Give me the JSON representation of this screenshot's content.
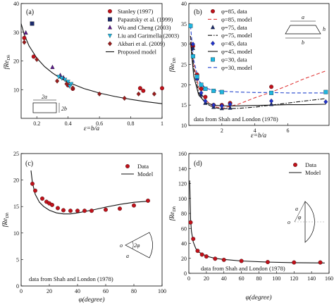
{
  "colors": {
    "red": "#c0111a",
    "navy": "#1b2a6b",
    "purple": "#5b1a8a",
    "cyan": "#1fb6e0",
    "darkred": "#9b1c1c",
    "blue": "#2233cc",
    "black": "#111111",
    "dashred": "#e03a3a",
    "dashblue": "#2244cc"
  },
  "chart_data": [
    {
      "panel": "(a)",
      "type": "scatter",
      "xlabel": "ε=b/a",
      "ylabel": "fRe_Dh",
      "xlim": [
        0.1,
        1.0
      ],
      "ylim": [
        0,
        40
      ],
      "xticks": [
        0.2,
        0.4,
        0.6,
        0.8,
        1
      ],
      "yticks": [
        10,
        20,
        30,
        40
      ],
      "legend_position": "top-right",
      "inset_labels": {
        "a": "2a",
        "b": "2b"
      },
      "series": [
        {
          "name": "Stanley (1997)",
          "marker": "circle",
          "color": "red",
          "points": [
            [
              0.12,
              28.0
            ],
            [
              0.18,
              21.5
            ],
            [
              0.4,
              11.5
            ],
            [
              0.43,
              10.3
            ],
            [
              0.86,
              10.5
            ],
            [
              0.88,
              9.6
            ],
            [
              1.0,
              10.5
            ]
          ]
        },
        {
          "name": "Papautsky et al. (1999)",
          "marker": "square",
          "color": "navy",
          "points": [
            [
              0.17,
              33.0
            ]
          ]
        },
        {
          "name": "Wu and Cheng (2003)",
          "marker": "triangle-up",
          "color": "purple",
          "points": [
            [
              0.13,
              29.8
            ],
            [
              0.3,
              17.8
            ],
            [
              0.35,
              15.0
            ],
            [
              0.37,
              14.2
            ]
          ]
        },
        {
          "name": "Liu and Garimella (2003)",
          "marker": "triangle-down",
          "color": "cyan",
          "points": [
            [
              0.34,
              14.5
            ],
            [
              0.36,
              14.0
            ],
            [
              0.38,
              13.5
            ],
            [
              0.4,
              12.8
            ],
            [
              0.42,
              12.0
            ],
            [
              0.41,
              11.2
            ]
          ]
        },
        {
          "name": "Akbari et al. (2009)",
          "marker": "diamond",
          "color": "darkred",
          "points": [
            [
              0.12,
              26.5
            ],
            [
              0.2,
              20.5
            ],
            [
              0.33,
              13.0
            ],
            [
              0.39,
              12.0
            ],
            [
              0.43,
              10.6
            ],
            [
              0.6,
              8.5
            ],
            [
              0.76,
              7.0
            ],
            [
              0.85,
              8.5
            ],
            [
              0.95,
              8.5
            ]
          ]
        },
        {
          "name": "Proposed model",
          "line": "solid",
          "color": "black",
          "points": [
            [
              0.1,
              33.0
            ],
            [
              0.12,
              29.2
            ],
            [
              0.15,
              25.3
            ],
            [
              0.2,
              21.0
            ],
            [
              0.25,
              18.0
            ],
            [
              0.3,
              15.8
            ],
            [
              0.35,
              14.0
            ],
            [
              0.4,
              12.6
            ],
            [
              0.5,
              10.4
            ],
            [
              0.6,
              8.8
            ],
            [
              0.7,
              7.6
            ],
            [
              0.8,
              6.6
            ],
            [
              0.9,
              5.8
            ],
            [
              1.0,
              5.1
            ]
          ]
        }
      ]
    },
    {
      "panel": "(b)",
      "type": "line",
      "xlabel": "ε=b/a",
      "ylabel": "fRe_Dh",
      "xlim": [
        0,
        8.5
      ],
      "ylim": [
        10,
        40
      ],
      "xticks": [
        2,
        4,
        6
      ],
      "yticks": [
        10,
        15,
        20,
        25,
        30,
        35,
        40
      ],
      "legend_position": "top-center",
      "annotation": "data from Shah and London (1978)",
      "inset_labels": {
        "a": "a",
        "b": "b",
        "h": "h"
      },
      "series": [
        {
          "name": "φ=85, data",
          "marker": "circle",
          "color": "red",
          "points": [
            [
              0.25,
              29.5
            ],
            [
              0.5,
              22.5
            ],
            [
              0.75,
              19.0
            ],
            [
              1.0,
              17.0
            ],
            [
              1.5,
              15.0
            ],
            [
              2.0,
              15.0
            ],
            [
              2.5,
              15.5
            ],
            [
              5.0,
              19.5
            ]
          ]
        },
        {
          "name": "φ=85, model",
          "line": "dashed",
          "color": "dashred",
          "points": [
            [
              0.1,
              32.0
            ],
            [
              0.3,
              25.0
            ],
            [
              0.6,
              19.2
            ],
            [
              1.0,
              16.2
            ],
            [
              1.5,
              14.7
            ],
            [
              2.0,
              14.2
            ],
            [
              3.0,
              15.2
            ],
            [
              4.0,
              16.8
            ],
            [
              5.0,
              18.2
            ],
            [
              6.0,
              19.8
            ],
            [
              7.0,
              21.5
            ],
            [
              8.3,
              23.4
            ]
          ]
        },
        {
          "name": "φ=75, data",
          "marker": "triangle-up",
          "color": "navy",
          "points": [
            [
              0.25,
              29.0
            ],
            [
              0.5,
              21.5
            ],
            [
              0.75,
              17.5
            ],
            [
              1.0,
              15.5
            ],
            [
              1.5,
              14.5
            ],
            [
              2.0,
              14.2
            ],
            [
              2.5,
              14.3
            ],
            [
              5.0,
              15.2
            ]
          ]
        },
        {
          "name": "φ=75, model",
          "line": "dashdot",
          "color": "black",
          "points": [
            [
              0.1,
              32.0
            ],
            [
              0.3,
              24.0
            ],
            [
              0.6,
              18.0
            ],
            [
              1.0,
              15.5
            ],
            [
              1.5,
              14.4
            ],
            [
              2.0,
              14.1
            ],
            [
              3.0,
              14.2
            ],
            [
              4.0,
              14.5
            ],
            [
              5.0,
              15.0
            ],
            [
              6.0,
              15.5
            ],
            [
              7.0,
              16.0
            ],
            [
              8.3,
              16.6
            ]
          ]
        },
        {
          "name": "φ=45, data",
          "marker": "diamond",
          "color": "blue",
          "points": [
            [
              0.25,
              30.0
            ],
            [
              0.5,
              21.5
            ],
            [
              0.75,
              18.0
            ],
            [
              1.0,
              16.0
            ],
            [
              1.5,
              15.0
            ],
            [
              2.0,
              14.8
            ],
            [
              2.5,
              15.2
            ],
            [
              5.0,
              16.0
            ],
            [
              8.3,
              15.8
            ]
          ]
        },
        {
          "name": "φ=45, model",
          "line": "solid",
          "color": "black",
          "points": [
            [
              0.1,
              30.5
            ],
            [
              0.3,
              22.0
            ],
            [
              0.6,
              17.5
            ],
            [
              1.0,
              15.6
            ],
            [
              1.5,
              15.0
            ],
            [
              2.0,
              14.8
            ],
            [
              3.0,
              14.8
            ],
            [
              4.0,
              14.9
            ],
            [
              5.0,
              15.0
            ],
            [
              6.0,
              15.1
            ],
            [
              7.0,
              15.1
            ],
            [
              8.3,
              15.2
            ]
          ]
        },
        {
          "name": "φ=30, data",
          "marker": "square",
          "color": "cyan",
          "points": [
            [
              0.1,
              34.5
            ],
            [
              0.25,
              27.0
            ],
            [
              0.5,
              22.0
            ],
            [
              0.75,
              20.0
            ],
            [
              1.0,
              19.0
            ],
            [
              1.5,
              18.5
            ],
            [
              2.0,
              18.2
            ],
            [
              5.0,
              18.0
            ],
            [
              8.3,
              18.2
            ]
          ]
        },
        {
          "name": "φ=30, model",
          "line": "dashed",
          "color": "dashblue",
          "points": [
            [
              0.1,
              34.5
            ],
            [
              0.3,
              26.0
            ],
            [
              0.6,
              21.0
            ],
            [
              1.0,
              19.2
            ],
            [
              1.5,
              18.6
            ],
            [
              2.0,
              18.4
            ],
            [
              3.0,
              18.2
            ],
            [
              4.0,
              18.1
            ],
            [
              5.0,
              18.1
            ],
            [
              6.0,
              18.0
            ],
            [
              7.0,
              18.0
            ],
            [
              8.3,
              18.0
            ]
          ]
        }
      ]
    },
    {
      "panel": "(c)",
      "type": "scatter",
      "xlabel": "φ(degree)",
      "ylabel": "fRe_Dh",
      "xlim": [
        0,
        100
      ],
      "ylim": [
        0,
        25
      ],
      "xticks": [
        0,
        20,
        40,
        60,
        80,
        100
      ],
      "yticks": [
        0,
        5,
        10,
        15,
        20,
        25
      ],
      "legend_position": "top-right",
      "annotation": "data from Shah and London (1978)",
      "inset_labels": {
        "a": "a",
        "phi": "2φ",
        "o": "o"
      },
      "series": [
        {
          "name": "Data",
          "marker": "circle",
          "color": "red",
          "points": [
            [
              8,
              19.3
            ],
            [
              10,
              18.0
            ],
            [
              15,
              16.5
            ],
            [
              18,
              15.9
            ],
            [
              20,
              15.6
            ],
            [
              22,
              15.3
            ],
            [
              26,
              14.7
            ],
            [
              30,
              14.3
            ],
            [
              35,
              14.2
            ],
            [
              40,
              14.2
            ],
            [
              45,
              14.2
            ],
            [
              50,
              14.2
            ],
            [
              60,
              14.4
            ],
            [
              70,
              14.6
            ],
            [
              80,
              15.2
            ],
            [
              90,
              16.1
            ]
          ]
        },
        {
          "name": "Model",
          "line": "solid",
          "color": "black",
          "points": [
            [
              7,
              21.8
            ],
            [
              8,
              19.5
            ],
            [
              10,
              17.3
            ],
            [
              13,
              15.8
            ],
            [
              16,
              15.0
            ],
            [
              20,
              14.3
            ],
            [
              25,
              13.8
            ],
            [
              30,
              13.6
            ],
            [
              35,
              13.6
            ],
            [
              40,
              13.8
            ],
            [
              50,
              14.3
            ],
            [
              60,
              14.9
            ],
            [
              70,
              15.4
            ],
            [
              80,
              15.8
            ],
            [
              90,
              16.0
            ]
          ]
        }
      ]
    },
    {
      "panel": "(d)",
      "type": "scatter",
      "xlabel": "φ(degree)",
      "ylabel": "fRe_Dh",
      "xlim": [
        0,
        160
      ],
      "ylim": [
        0,
        160
      ],
      "xticks": [
        0,
        20,
        40,
        60,
        80,
        100,
        120,
        140,
        160
      ],
      "yticks": [
        0,
        20,
        40,
        60,
        80,
        100,
        120,
        140,
        160
      ],
      "legend_position": "top-right",
      "annotation": "data from Shah and London (1978)",
      "inset_labels": {
        "a": "a",
        "phi": "φ",
        "o": "o"
      },
      "series": [
        {
          "name": "Data",
          "marker": "circle",
          "color": "red",
          "points": [
            [
              2,
              68.0
            ],
            [
              5,
              46.0
            ],
            [
              10,
              30.0
            ],
            [
              15,
              25.0
            ],
            [
              20,
              22.5
            ],
            [
              30,
              19.5
            ],
            [
              40,
              18.0
            ],
            [
              60,
              16.5
            ],
            [
              90,
              15.0
            ],
            [
              120,
              14.5
            ],
            [
              150,
              14.5
            ]
          ]
        },
        {
          "name": "Model",
          "line": "solid",
          "color": "black",
          "points": [
            [
              1,
              124.0
            ],
            [
              2,
              72.0
            ],
            [
              3,
              56.0
            ],
            [
              5,
              42.0
            ],
            [
              8,
              33.0
            ],
            [
              12,
              28.0
            ],
            [
              20,
              23.0
            ],
            [
              30,
              20.0
            ],
            [
              40,
              18.5
            ],
            [
              60,
              16.5
            ],
            [
              90,
              15.0
            ],
            [
              120,
              14.2
            ],
            [
              155,
              13.8
            ]
          ]
        }
      ]
    }
  ]
}
